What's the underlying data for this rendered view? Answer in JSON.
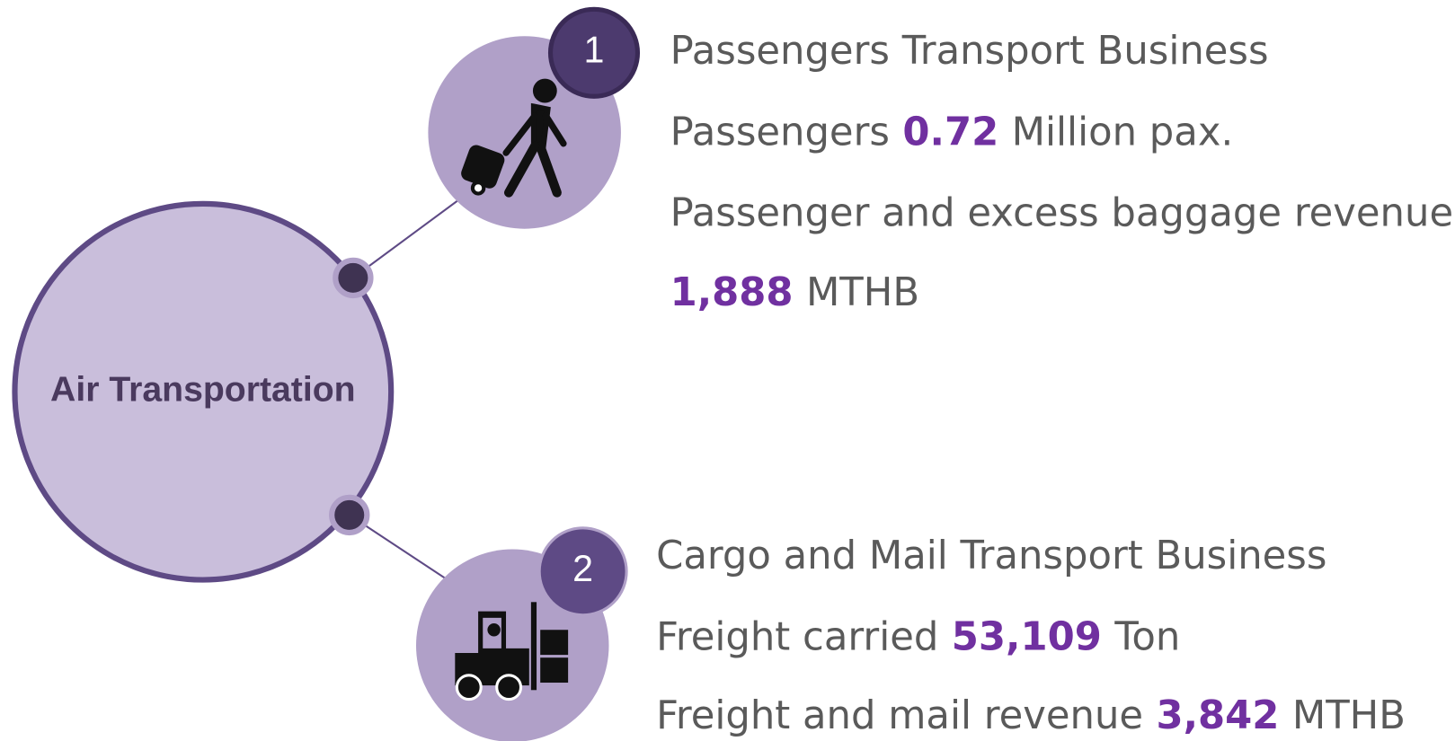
{
  "center": {
    "label": "Air Transportation"
  },
  "items": [
    {
      "number": "1",
      "lines": [
        [
          {
            "text": "Passengers Transport Business"
          }
        ],
        [
          {
            "text": "Passengers"
          },
          {
            "text": "0.72",
            "highlight": true
          },
          {
            "text": "Million pax."
          }
        ],
        [
          {
            "text": "Passenger and excess baggage revenue"
          }
        ],
        [
          {
            "text": "1,888",
            "highlight": true
          },
          {
            "text": "MTHB"
          }
        ]
      ]
    },
    {
      "number": "2",
      "lines": [
        [
          {
            "text": "Cargo and Mail Transport Business"
          }
        ],
        [
          {
            "text": "Freight carried"
          },
          {
            "text": "53,109",
            "highlight": true
          },
          {
            "text": "Ton"
          }
        ],
        [
          {
            "text": "Freight and mail revenue"
          },
          {
            "text": "3,842",
            "highlight": true
          },
          {
            "text": "MTHB"
          }
        ]
      ]
    }
  ]
}
